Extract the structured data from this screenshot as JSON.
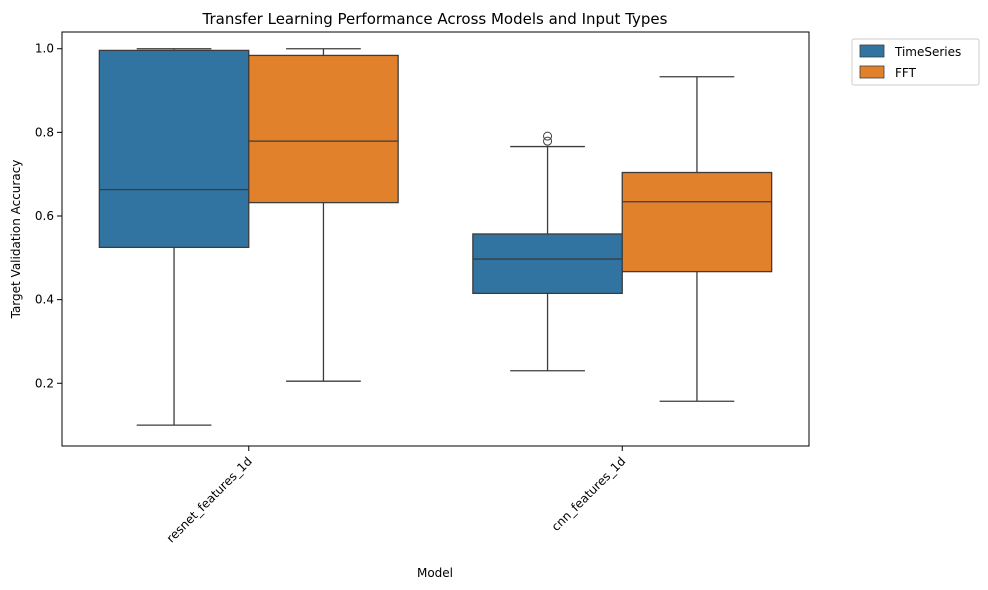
{
  "chart_data": {
    "type": "box",
    "title": "Transfer Learning Performance Across Models and Input Types",
    "xlabel": "Model",
    "ylabel": "Target Validation Accuracy",
    "categories": [
      "resnet_features_1d",
      "cnn_features_1d"
    ],
    "ylim": [
      0.05,
      1.04
    ],
    "yticks": [
      0.2,
      0.4,
      0.6,
      0.8,
      1.0
    ],
    "ytick_labels": [
      "0.2",
      "0.4",
      "0.6",
      "0.8",
      "1.0"
    ],
    "legend": {
      "placement": "outside-top-right"
    },
    "series": [
      {
        "name": "TimeSeries",
        "color": "#3274a1",
        "boxes": [
          {
            "category": "resnet_features_1d",
            "whisker_low": 0.1,
            "q1": 0.525,
            "median": 0.663,
            "q3": 0.996,
            "whisker_high": 1.0,
            "outliers": []
          },
          {
            "category": "cnn_features_1d",
            "whisker_low": 0.23,
            "q1": 0.415,
            "median": 0.497,
            "q3": 0.557,
            "whisker_high": 0.766,
            "outliers": [
              0.779,
              0.791
            ]
          }
        ]
      },
      {
        "name": "FFT",
        "color": "#e1812c",
        "boxes": [
          {
            "category": "resnet_features_1d",
            "whisker_low": 0.205,
            "q1": 0.632,
            "median": 0.779,
            "q3": 0.984,
            "whisker_high": 1.0,
            "outliers": []
          },
          {
            "category": "cnn_features_1d",
            "whisker_low": 0.157,
            "q1": 0.467,
            "median": 0.634,
            "q3": 0.704,
            "whisker_high": 0.933,
            "outliers": []
          }
        ]
      }
    ]
  }
}
